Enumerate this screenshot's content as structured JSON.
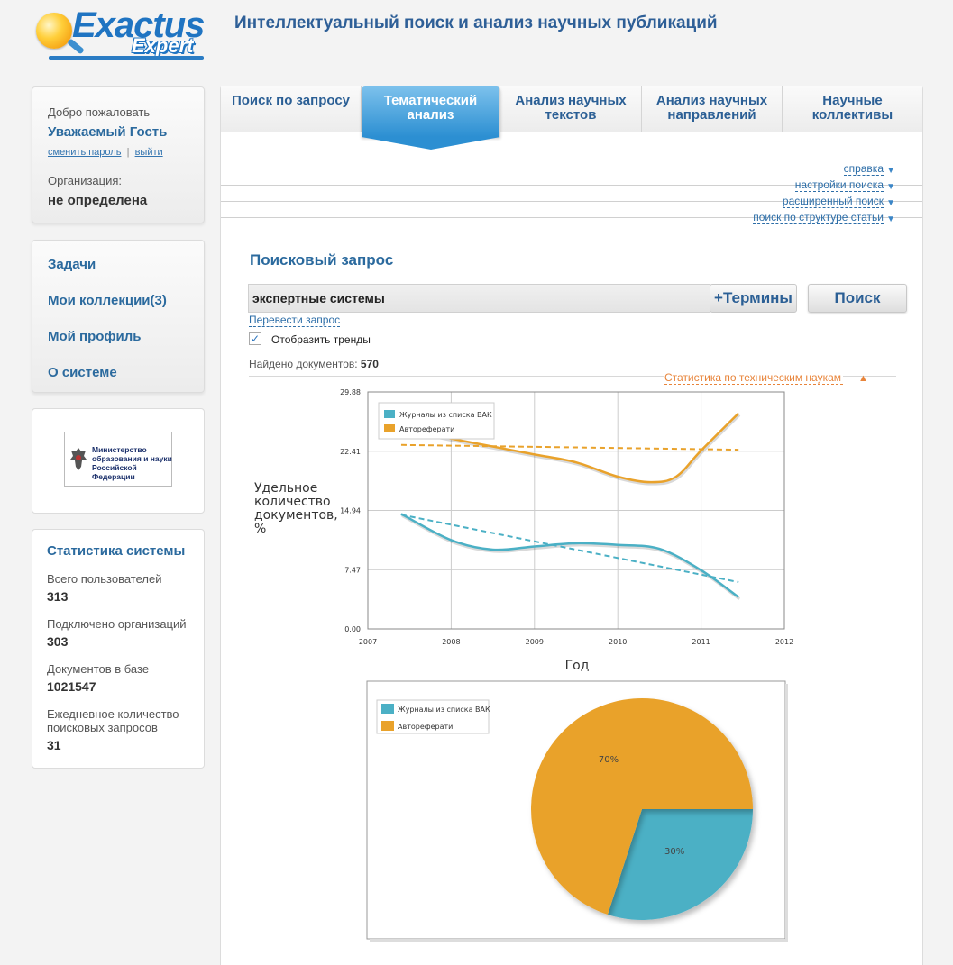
{
  "header": {
    "logo_main": "Exactus",
    "logo_sub": "Expert",
    "title": "Интеллектуальный поиск и анализ научных публикаций"
  },
  "user": {
    "welcome": "Добро пожаловать",
    "name": "Уважаемый Гость",
    "change_password": "сменить пароль",
    "separator": "|",
    "logout": "выйти",
    "org_label": "Организация:",
    "org_value": "не определена"
  },
  "menu": [
    "Задачи",
    "Мои коллекции(3)",
    "Мой профиль",
    "О системе"
  ],
  "ministry": {
    "logo_text": "Министерство образования и науки Российской Федерации"
  },
  "system_stats": {
    "title": "Статистика системы",
    "items": [
      {
        "label": "Всего пользователей",
        "value": "313"
      },
      {
        "label": "Подключено организаций",
        "value": "303"
      },
      {
        "label": "Документов в базе",
        "value": "1021547"
      },
      {
        "label": "Ежедневное количество поисковых запросов",
        "value": "31"
      }
    ]
  },
  "tabs": [
    {
      "label": "Поиск по запросу",
      "active": false
    },
    {
      "label": "Тематический анализ",
      "active": true
    },
    {
      "label": "Анализ научных текстов",
      "active": false
    },
    {
      "label": "Анализ научных направлений",
      "active": false
    },
    {
      "label": "Научные коллективы",
      "active": false
    }
  ],
  "options": [
    "справка",
    "настройки поиска",
    "расширенный поиск",
    "поиск по структуре статьи"
  ],
  "search": {
    "heading": "Поисковый запрос",
    "query": "экспертные системы",
    "terms_button": "+Термины",
    "search_button": "Поиск",
    "translate_link": "Перевести запрос",
    "show_trends_label": "Отобразить тренды",
    "show_trends_checked": true,
    "found_label": "Найдено документов:",
    "found_value": "570",
    "stats_link": "Статистика по техническим наукам"
  },
  "colors": {
    "teal": "#4bb0c5",
    "orange": "#e9a22b",
    "brand_blue": "#2b6a9e"
  },
  "chart_data": [
    {
      "type": "line",
      "ylabel": "Удельное количество документов, %",
      "xlabel": "Год",
      "xlim": [
        2007,
        2012
      ],
      "ylim": [
        0,
        29.88
      ],
      "x_ticks": [
        "2007",
        "2008",
        "2009",
        "2010",
        "2011",
        "2012"
      ],
      "y_ticks": [
        "0.00",
        "7.47",
        "14.94",
        "22.41",
        "29.88"
      ],
      "grid": true,
      "legend_position": "top-left",
      "show_trends": true,
      "series": [
        {
          "name": "Журналы из списка ВАК",
          "color": "#4bb0c5",
          "x": [
            2007.4,
            2008.0,
            2008.5,
            2009.0,
            2009.5,
            2010.0,
            2010.5,
            2011.0,
            2011.45
          ],
          "values": [
            14.5,
            11.2,
            10.0,
            10.4,
            10.8,
            10.6,
            10.1,
            7.4,
            4.0
          ],
          "trend": [
            14.4,
            5.9
          ]
        },
        {
          "name": "Автореферати",
          "color": "#e9a22b",
          "x": [
            2007.4,
            2008.0,
            2008.5,
            2009.0,
            2009.5,
            2010.0,
            2010.4,
            2010.7,
            2011.0,
            2011.45
          ],
          "values": [
            25.3,
            24.0,
            23.0,
            22.0,
            21.0,
            19.2,
            18.5,
            19.2,
            22.5,
            27.2
          ],
          "trend": [
            23.2,
            22.6
          ]
        }
      ]
    },
    {
      "type": "pie",
      "legend_position": "top-left",
      "series": [
        {
          "name": "Журналы из списка ВАК",
          "value": 30,
          "label": "30%",
          "color": "#4bb0c5"
        },
        {
          "name": "Автореферати",
          "value": 70,
          "label": "70%",
          "color": "#e9a22b"
        }
      ]
    }
  ]
}
